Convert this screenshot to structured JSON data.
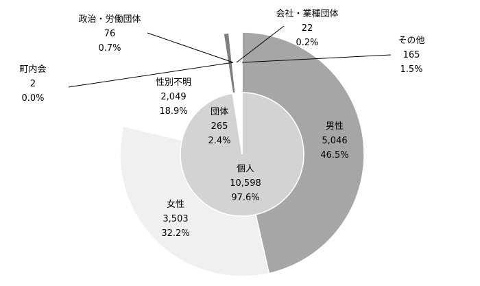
{
  "chart_data": {
    "type": "pie",
    "subtype": "nested-donut",
    "inner": {
      "slices": [
        {
          "label": "個人",
          "value": 10598,
          "value_text": "10,598",
          "percent": "97.6%",
          "color": "#d3d3d3"
        },
        {
          "label": "団体",
          "value": 265,
          "value_text": "265",
          "percent": "2.4%",
          "color": "#ffffff"
        }
      ]
    },
    "outer": {
      "slices": [
        {
          "label": "男性",
          "value": 5046,
          "value_text": "5,046",
          "percent": "46.5%",
          "color": "#a6a6a6"
        },
        {
          "label": "女性",
          "value": 3503,
          "value_text": "3,503",
          "percent": "32.2%",
          "color": "#f0f0f0"
        },
        {
          "label": "性別不明",
          "value": 2049,
          "value_text": "2,049",
          "percent": "18.9%",
          "color": "#ffffff"
        },
        {
          "label": "町内会",
          "value": 2,
          "value_text": "2",
          "percent": "0.0%",
          "color": "#ffffff"
        },
        {
          "label": "政治・労働団体",
          "value": 76,
          "value_text": "76",
          "percent": "0.7%",
          "color": "#7f7f7f"
        },
        {
          "label": "会社・業種団体",
          "value": 22,
          "value_text": "22",
          "percent": "0.2%",
          "color": "#ffffff"
        },
        {
          "label": "その他",
          "value": 165,
          "value_text": "165",
          "percent": "1.5%",
          "color": "#ffffff"
        }
      ]
    },
    "start_angle": "12 o'clock",
    "direction": "clockwise",
    "legend": "none"
  }
}
